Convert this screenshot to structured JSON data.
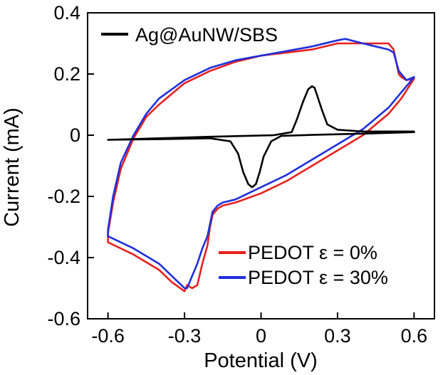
{
  "chart_data": {
    "type": "line",
    "xlabel": "Potential  (V)",
    "ylabel": "Current (mA)",
    "xlim": [
      -0.68,
      0.68
    ],
    "ylim": [
      -0.6,
      0.4
    ],
    "x_ticks": [
      -0.6,
      -0.3,
      0,
      0.3,
      0.6
    ],
    "x_tick_labels": [
      "-0.6",
      "-0.3",
      "0",
      "0.3",
      "0.6"
    ],
    "y_ticks": [
      -0.6,
      -0.4,
      -0.2,
      0,
      0.2,
      0.4
    ],
    "y_tick_labels": [
      "-0.6",
      "-0.4",
      "-0.2",
      "0",
      "0.2",
      "0.4"
    ],
    "grid": false,
    "series": [
      {
        "name": "Ag@AuNW/SBS",
        "color": "#000000",
        "legend_position": "top-left",
        "x": [
          -0.6,
          -0.4,
          -0.2,
          -0.12,
          -0.09,
          -0.07,
          -0.05,
          -0.035,
          -0.02,
          -0.005,
          0.01,
          0.04,
          0.08,
          0.2,
          0.4,
          0.6,
          0.6,
          0.4,
          0.3,
          0.26,
          0.24,
          0.22,
          0.21,
          0.2,
          0.185,
          0.165,
          0.14,
          0.12,
          0.05,
          -0.2,
          -0.4,
          -0.6
        ],
        "y": [
          -0.015,
          -0.013,
          -0.01,
          -0.02,
          -0.06,
          -0.12,
          -0.16,
          -0.17,
          -0.16,
          -0.12,
          -0.07,
          -0.02,
          -0.002,
          0.001,
          0.005,
          0.01,
          0.012,
          0.012,
          0.018,
          0.035,
          0.08,
          0.13,
          0.155,
          0.16,
          0.15,
          0.11,
          0.05,
          0.01,
          0.0,
          -0.005,
          -0.01,
          -0.015
        ]
      },
      {
        "name": "PEDOT ε = 0%",
        "color": "#e8201c",
        "legend_position": "bottom-right",
        "x": [
          0.6,
          0.55,
          0.5,
          0.4,
          0.3,
          0.2,
          0.1,
          0.0,
          -0.1,
          -0.15,
          -0.17,
          -0.19,
          -0.2,
          -0.21,
          -0.23,
          -0.25,
          -0.27,
          -0.29,
          -0.3,
          -0.35,
          -0.4,
          -0.5,
          -0.6,
          -0.6,
          -0.58,
          -0.55,
          -0.5,
          -0.45,
          -0.4,
          -0.3,
          -0.2,
          -0.1,
          0.0,
          0.1,
          0.2,
          0.3,
          0.33,
          0.4,
          0.45,
          0.5,
          0.52,
          0.53,
          0.54,
          0.55,
          0.57,
          0.6
        ],
        "y": [
          0.185,
          0.12,
          0.07,
          0.0,
          -0.05,
          -0.1,
          -0.15,
          -0.19,
          -0.22,
          -0.23,
          -0.24,
          -0.26,
          -0.3,
          -0.36,
          -0.42,
          -0.49,
          -0.5,
          -0.49,
          -0.51,
          -0.48,
          -0.44,
          -0.39,
          -0.35,
          -0.32,
          -0.22,
          -0.11,
          -0.01,
          0.06,
          0.1,
          0.17,
          0.21,
          0.24,
          0.26,
          0.27,
          0.28,
          0.3,
          0.3,
          0.3,
          0.3,
          0.3,
          0.28,
          0.24,
          0.2,
          0.19,
          0.18,
          0.185
        ]
      },
      {
        "name": "PEDOT ε = 30%",
        "color": "#1f2fdc",
        "legend_position": "bottom-right",
        "x": [
          0.6,
          0.55,
          0.5,
          0.4,
          0.3,
          0.2,
          0.1,
          0.0,
          -0.1,
          -0.15,
          -0.17,
          -0.19,
          -0.2,
          -0.21,
          -0.23,
          -0.25,
          -0.27,
          -0.29,
          -0.3,
          -0.35,
          -0.4,
          -0.5,
          -0.6,
          -0.6,
          -0.58,
          -0.55,
          -0.5,
          -0.45,
          -0.4,
          -0.3,
          -0.2,
          -0.1,
          0.0,
          0.1,
          0.2,
          0.3,
          0.33,
          0.4,
          0.45,
          0.5,
          0.52,
          0.53,
          0.54,
          0.55,
          0.57,
          0.6
        ],
        "y": [
          0.19,
          0.14,
          0.09,
          0.02,
          -0.03,
          -0.08,
          -0.13,
          -0.17,
          -0.21,
          -0.22,
          -0.23,
          -0.25,
          -0.29,
          -0.33,
          -0.37,
          -0.42,
          -0.46,
          -0.5,
          -0.5,
          -0.46,
          -0.42,
          -0.37,
          -0.33,
          -0.31,
          -0.2,
          -0.09,
          0.0,
          0.07,
          0.12,
          0.18,
          0.22,
          0.245,
          0.26,
          0.275,
          0.29,
          0.31,
          0.315,
          0.3,
          0.29,
          0.28,
          0.27,
          0.24,
          0.21,
          0.2,
          0.18,
          0.19
        ]
      }
    ]
  }
}
